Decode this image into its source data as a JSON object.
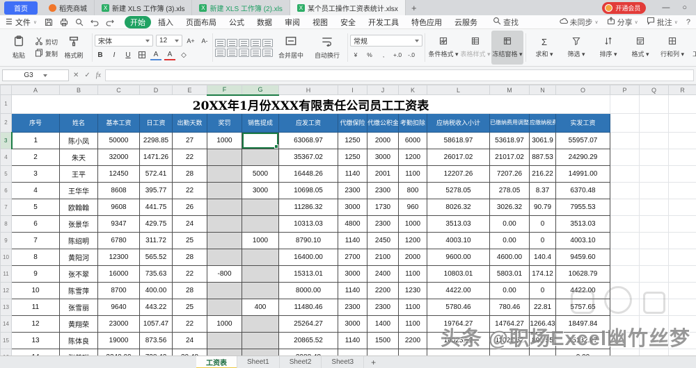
{
  "window": {
    "home_label": "首页",
    "doc_tabs": [
      {
        "label": "稻壳商城",
        "icon": "docer-icon",
        "active": false,
        "green_text": false
      },
      {
        "label": "新建 XLS 工作簿 (3).xls",
        "icon": "xls-icon",
        "active": false,
        "green_text": false
      },
      {
        "label": "新建 XLS 工作簿 (2).xls",
        "icon": "xls-icon",
        "active": false,
        "green_text": true
      },
      {
        "label": "某个员工操作工资表统计.xlsx",
        "icon": "xls-icon",
        "active": true,
        "green_text": false
      }
    ],
    "new_tab_label": "+",
    "member_badge": "开通会员",
    "minimize_label": "—",
    "restore_label": "○"
  },
  "menu": {
    "file_label": "文件",
    "quick_icons": [
      {
        "icon": "save-icon"
      },
      {
        "icon": "print-icon"
      },
      {
        "icon": "preview-icon"
      },
      {
        "icon": "undo-icon"
      },
      {
        "icon": "redo-icon"
      }
    ],
    "items": [
      {
        "label": "开始",
        "active": true
      },
      {
        "label": "插入"
      },
      {
        "label": "页面布局"
      },
      {
        "label": "公式"
      },
      {
        "label": "数据"
      },
      {
        "label": "审阅"
      },
      {
        "label": "视图"
      },
      {
        "label": "安全"
      },
      {
        "label": "开发工具"
      },
      {
        "label": "特色应用"
      },
      {
        "label": "云服务"
      }
    ],
    "search_label": "查找",
    "right": [
      {
        "icon": "cloud-icon",
        "label": "未同步"
      },
      {
        "icon": "share-icon",
        "label": "分享"
      },
      {
        "icon": "comment-icon",
        "label": "批注"
      }
    ],
    "help_label": "?"
  },
  "ribbon": {
    "paste_label": "粘贴",
    "cut_label": "剪切",
    "copy_label": "复制",
    "painter_label": "格式刷",
    "font_name": "宋体",
    "font_size": "12",
    "grow_font": "A+",
    "shrink_font": "A-",
    "bold": "B",
    "italic": "I",
    "underline": "U",
    "font_color": "A",
    "fill_color": "A",
    "clear_format": "◇",
    "merge_label": "合并居中",
    "wrap_label": "自动换行",
    "number_format": "常规",
    "number_buttons": [
      "¥",
      "%",
      ",",
      "+.0",
      "-.0"
    ],
    "style_buttons": [
      {
        "label": "条件格式",
        "icon": "cond-format-icon",
        "disabled": false,
        "pressed": false
      },
      {
        "label": "表格样式",
        "icon": "table-style-icon",
        "disabled": true,
        "pressed": false
      },
      {
        "label": "冻结窗格",
        "icon": "freeze-icon",
        "disabled": false,
        "pressed": true
      }
    ],
    "action_buttons": [
      {
        "label": "求和",
        "icon": "sum-icon"
      },
      {
        "label": "筛选",
        "icon": "filter-icon"
      },
      {
        "label": "排序",
        "icon": "sort-icon"
      },
      {
        "label": "格式",
        "icon": "format-icon"
      },
      {
        "label": "行和列",
        "icon": "rowcol-icon"
      },
      {
        "label": "工作表",
        "icon": "worksheet-icon"
      }
    ]
  },
  "formula_bar": {
    "name_box": "G3",
    "cancel": "✕",
    "confirm": "✓",
    "fx": "fx"
  },
  "sheet": {
    "col_letters": [
      "A",
      "B",
      "C",
      "D",
      "E",
      "F",
      "G",
      "H",
      "I",
      "J",
      "K",
      "L",
      "M",
      "N",
      "O",
      "P",
      "Q",
      "R"
    ],
    "selected_columns": [
      5,
      6
    ],
    "selection": {
      "cell": "G3",
      "row": 0,
      "col": 6
    },
    "row_numbers": [
      "1",
      "2",
      "3",
      "4",
      "5",
      "6",
      "7",
      "8",
      "9",
      "10",
      "11",
      "12",
      "13",
      "14",
      "15",
      "16"
    ],
    "title": "20XX年1月份XXX有限责任公司员工工资表",
    "columns": [
      "序号",
      "姓名",
      "基本工资",
      "日工资",
      "出勤天数",
      "奖罚",
      "销售提成",
      "应发工资",
      "代缴保险",
      "代缴公积金",
      "考勤扣除",
      "应纳税收入小计",
      "已缴纳费用调整",
      "应缴纳税费",
      "实发工资"
    ],
    "rows": [
      [
        "1",
        "陈小凤",
        "50000",
        "2298.85",
        "27",
        "1000",
        "",
        "63068.97",
        "1250",
        "2000",
        "6000",
        "58618.97",
        "53618.97",
        "3061.9",
        "55957.07"
      ],
      [
        "2",
        "朱天",
        "32000",
        "1471.26",
        "22",
        "",
        "",
        "35367.02",
        "1250",
        "3000",
        "1200",
        "26017.02",
        "21017.02",
        "887.53",
        "24290.29"
      ],
      [
        "3",
        "王平",
        "12450",
        "572.41",
        "28",
        "",
        "5000",
        "16448.26",
        "1140",
        "2001",
        "1100",
        "12207.26",
        "7207.26",
        "216.22",
        "14991.00"
      ],
      [
        "4",
        "王华华",
        "8608",
        "395.77",
        "22",
        "",
        "3000",
        "10698.05",
        "2300",
        "2300",
        "800",
        "5278.05",
        "278.05",
        "8.37",
        "6370.48"
      ],
      [
        "5",
        "欧翰翰",
        "9608",
        "441.75",
        "26",
        "",
        "",
        "11286.32",
        "3000",
        "1730",
        "960",
        "8026.32",
        "3026.32",
        "90.79",
        "7955.53"
      ],
      [
        "6",
        "张景华",
        "9347",
        "429.75",
        "24",
        "",
        "",
        "10313.03",
        "4800",
        "2300",
        "1000",
        "3513.03",
        "0.00",
        "0",
        "3513.03"
      ],
      [
        "7",
        "陈绍明",
        "6780",
        "311.72",
        "25",
        "",
        "1000",
        "8790.10",
        "1140",
        "2450",
        "1200",
        "4003.10",
        "0.00",
        "0",
        "4003.10"
      ],
      [
        "8",
        "黄阳河",
        "12300",
        "565.52",
        "28",
        "",
        "",
        "16400.00",
        "2700",
        "2100",
        "2000",
        "9600.00",
        "4600.00",
        "140.4",
        "9459.60"
      ],
      [
        "9",
        "张不翠",
        "16000",
        "735.63",
        "22",
        "-800",
        "",
        "15313.01",
        "3000",
        "2400",
        "1100",
        "10803.01",
        "5803.01",
        "174.12",
        "10628.79"
      ],
      [
        "10",
        "陈雪萍",
        "8700",
        "400.00",
        "28",
        "",
        "",
        "8000.00",
        "1140",
        "2200",
        "1230",
        "4422.00",
        "0.00",
        "0",
        "4422.00"
      ],
      [
        "11",
        "张雪丽",
        "9640",
        "443.22",
        "25",
        "",
        "400",
        "11480.46",
        "2300",
        "2300",
        "1100",
        "5780.46",
        "780.46",
        "22.81",
        "5757.65"
      ],
      [
        "12",
        "黄翔荣",
        "23000",
        "1057.47",
        "22",
        "1000",
        "",
        "25264.27",
        "3000",
        "1400",
        "1100",
        "19764.27",
        "14764.27",
        "1266.43",
        "18497.84"
      ],
      [
        "13",
        "陈体良",
        "19000",
        "873.56",
        "24",
        "",
        "",
        "20865.52",
        "1140",
        "1500",
        "2200",
        "16025.52",
        "11025.52",
        "892.55",
        "15132.97"
      ]
    ],
    "partial_row": [
      "14",
      "张美琪",
      "3340.00",
      "728.42",
      "30.48",
      "",
      "",
      "3988.48",
      "",
      "",
      "",
      "",
      "",
      "",
      "0.00"
    ]
  },
  "sheet_tabs": {
    "tabs": [
      {
        "label": "工资表",
        "active": true
      },
      {
        "label": "Sheet1",
        "active": false
      },
      {
        "label": "Sheet2",
        "active": false
      },
      {
        "label": "Sheet3",
        "active": false
      }
    ],
    "add_label": "+"
  },
  "watermark": {
    "text": "头条 @职场Excel幽竹丝梦"
  },
  "colors": {
    "header_blue": "#2f74b5",
    "selection_green": "#1c7c46",
    "gray_fill": "#d9d9d9",
    "accent_green": "#21a263",
    "home_blue": "#3f6ff7",
    "badge_red": "#e23c39"
  }
}
